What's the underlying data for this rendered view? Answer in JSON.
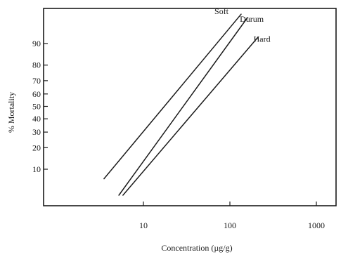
{
  "chart_data": {
    "type": "line",
    "title": "",
    "xlabel": "Concentration (µg/g)",
    "ylabel": "% Mortality",
    "xscale": "log",
    "yscale": "probit",
    "xlim": [
      1.5,
      1000
    ],
    "ylim": [
      3,
      99
    ],
    "grid": false,
    "x_ticks": [
      {
        "value": 10,
        "label": "10"
      },
      {
        "value": 100,
        "label": "100"
      },
      {
        "value": 1000,
        "label": "1000"
      }
    ],
    "y_ticks": [
      {
        "value": 10,
        "label": "10"
      },
      {
        "value": 20,
        "label": "20"
      },
      {
        "value": 30,
        "label": "30"
      },
      {
        "value": 40,
        "label": "40"
      },
      {
        "value": 50,
        "label": "50"
      },
      {
        "value": 60,
        "label": "60"
      },
      {
        "value": 70,
        "label": "70"
      },
      {
        "value": 80,
        "label": "80"
      },
      {
        "value": 90,
        "label": "90"
      }
    ],
    "series": [
      {
        "name": "Soft",
        "points": [
          {
            "x": 3.5,
            "y": 7
          },
          {
            "x": 135,
            "y": 97
          }
        ]
      },
      {
        "name": "Durum",
        "points": [
          {
            "x": 5.2,
            "y": 3.5
          },
          {
            "x": 160,
            "y": 96.5
          }
        ]
      },
      {
        "name": "Hard",
        "points": [
          {
            "x": 5.8,
            "y": 3.5
          },
          {
            "x": 210,
            "y": 92
          }
        ]
      }
    ]
  }
}
